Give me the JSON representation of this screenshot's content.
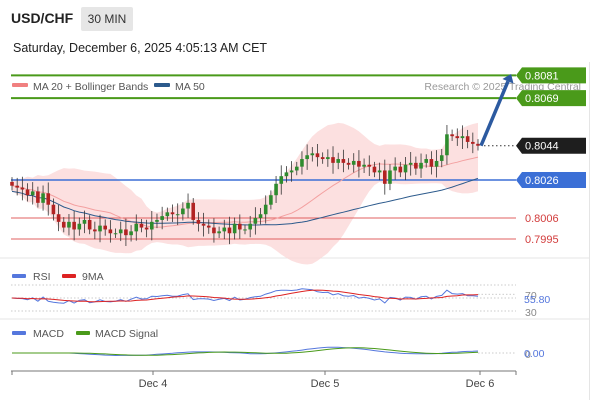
{
  "header": {
    "symbol": "USD/CHF",
    "interval": "30 MIN",
    "datetime": "Saturday, December 6, 2025 4:05:13 AM CET"
  },
  "legend": {
    "ma20_label": "MA 20 + Bollinger Bands",
    "ma50_label": "MA 50",
    "ma20_color": "#f08080",
    "ma50_color": "#2c5a8c"
  },
  "credit": "Research © 2025 Trading Central",
  "colors": {
    "up_candle": "#2e8b2e",
    "down_candle": "#b22222",
    "resistance": "#4a9a1a",
    "pivot": "#3b6fd6",
    "support": "#e06060",
    "arrow": "#2c5aa0",
    "bollinger_fill": "#fbd5d5",
    "rsi_line": "#5577dd",
    "rsi_ma": "#dd2222",
    "macd_line": "#5577dd",
    "macd_signal": "#4a9a1a"
  },
  "chart_data": [
    {
      "type": "candlestick",
      "ylim": [
        0.7985,
        0.8088
      ],
      "levels": {
        "resistance_2": 0.8081,
        "resistance_1": 0.8069,
        "last_price": 0.8044,
        "pivot": 0.8026,
        "support_1": 0.8006,
        "support_2": 0.7995
      },
      "level_labels": [
        "0.8081",
        "0.8069",
        "0.8044",
        "0.8026",
        "0.8006",
        "0.7995"
      ],
      "x_ticks": [
        "Dec 4",
        "Dec 5",
        "Dec 6"
      ],
      "closes": [
        0.8023,
        0.8022,
        0.8021,
        0.8018,
        0.802,
        0.8014,
        0.8019,
        0.8013,
        0.8008,
        0.8004,
        0.8001,
        0.8004,
        0.8,
        0.8003,
        0.8005,
        0.8,
        0.7999,
        0.8002,
        0.8,
        0.7998,
        0.7998,
        0.8,
        0.7997,
        0.7999,
        0.8003,
        0.8001,
        0.8,
        0.8004,
        0.8005,
        0.8007,
        0.8009,
        0.8008,
        0.8008,
        0.8011,
        0.8014,
        0.8005,
        0.8003,
        0.8002,
        0.8001,
        0.7998,
        0.7999,
        0.8001,
        0.7998,
        0.8003,
        0.8,
        0.8,
        0.8003,
        0.8006,
        0.8008,
        0.8013,
        0.8018,
        0.8024,
        0.8028,
        0.803,
        0.8031,
        0.8033,
        0.8037,
        0.8039,
        0.804,
        0.8038,
        0.8037,
        0.8038,
        0.8035,
        0.8037,
        0.8035,
        0.8034,
        0.8036,
        0.8033,
        0.8034,
        0.8033,
        0.803,
        0.8031,
        0.8024,
        0.8031,
        0.8033,
        0.803,
        0.8034,
        0.8035,
        0.8032,
        0.8035,
        0.8037,
        0.8033,
        0.8036,
        0.8039,
        0.805,
        0.8049,
        0.8048,
        0.8049,
        0.8046,
        0.8045,
        0.8044
      ]
    },
    {
      "type": "line",
      "name": "RSI",
      "legend": [
        "RSI",
        "9MA"
      ],
      "levels": [
        70,
        30
      ],
      "level_labels": [
        "70",
        "30"
      ],
      "last_value": 55.8,
      "last_label": "55.80"
    },
    {
      "type": "line",
      "name": "MACD",
      "legend": [
        "MACD",
        "MACD Signal"
      ],
      "last_value": 0.0,
      "last_label": "0.00",
      "level_labels": [
        "0"
      ]
    }
  ]
}
